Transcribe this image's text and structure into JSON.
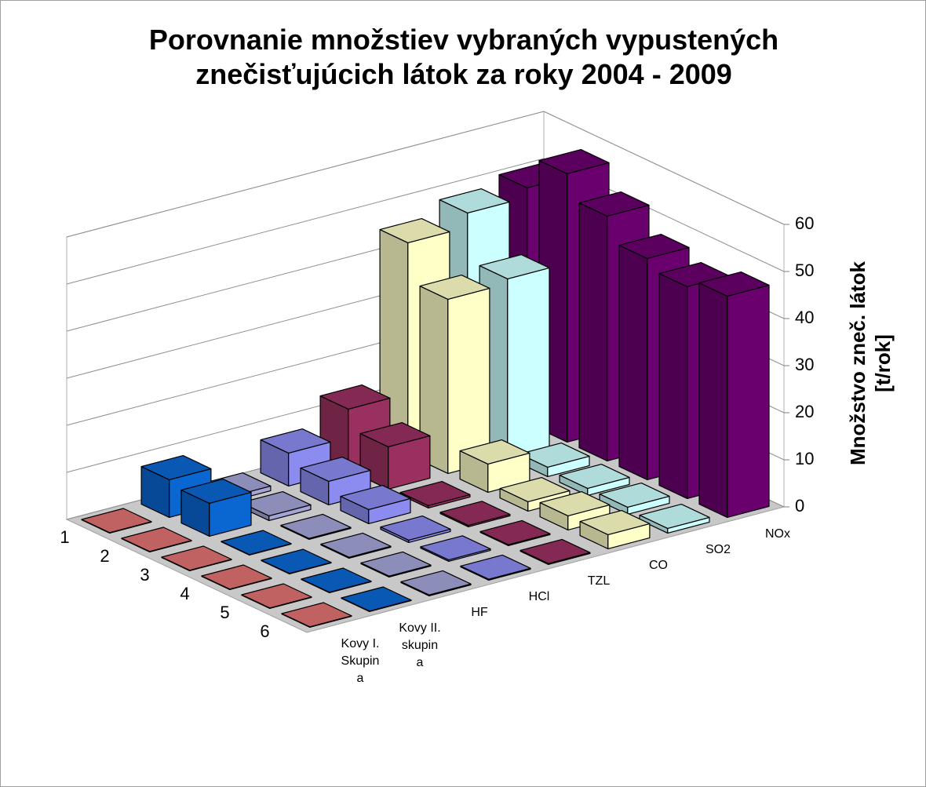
{
  "chart_data": {
    "type": "bar3d",
    "title": "Porovnanie množstiev  vybraných vypustených znečisťujúcich látok za  roky 2004 - 2009",
    "y_label": "Množstvo zneč. látok [t/rok]",
    "categories": [
      "1",
      "2",
      "3",
      "4",
      "5",
      "6"
    ],
    "series": [
      {
        "name": "Kovy I. Skupina",
        "color": "#e07272",
        "values": [
          0.1,
          0.1,
          0.1,
          0.1,
          0.1,
          0.1
        ]
      },
      {
        "name": "Kovy II. skupina",
        "color": "#0a66d0",
        "values": [
          8,
          7,
          0.1,
          0.1,
          0.1,
          0.1
        ]
      },
      {
        "name": "HF",
        "color": "#a4a4d8",
        "values": [
          1,
          1,
          0.2,
          0.2,
          0.2,
          0.2
        ]
      },
      {
        "name": "HCl",
        "color": "#8c8cf0",
        "values": [
          7,
          5,
          3,
          0.5,
          0.3,
          0.2
        ]
      },
      {
        "name": "TZL",
        "color": "#9a3060",
        "values": [
          13,
          9,
          0.5,
          0.3,
          0.2,
          0.2
        ]
      },
      {
        "name": "CO",
        "color": "#ffffc8",
        "values": [
          45,
          37,
          6,
          2,
          3,
          3
        ]
      },
      {
        "name": "SO2",
        "color": "#ccffff",
        "values": [
          48,
          38,
          2,
          1.5,
          1.5,
          1
        ]
      },
      {
        "name": "NOx",
        "color": "#6a006e",
        "values": [
          50,
          57,
          52,
          47,
          45,
          47
        ]
      }
    ],
    "ylim": [
      0,
      60
    ],
    "yticks": [
      0,
      10,
      20,
      30,
      40,
      50,
      60
    ],
    "grid": true
  }
}
